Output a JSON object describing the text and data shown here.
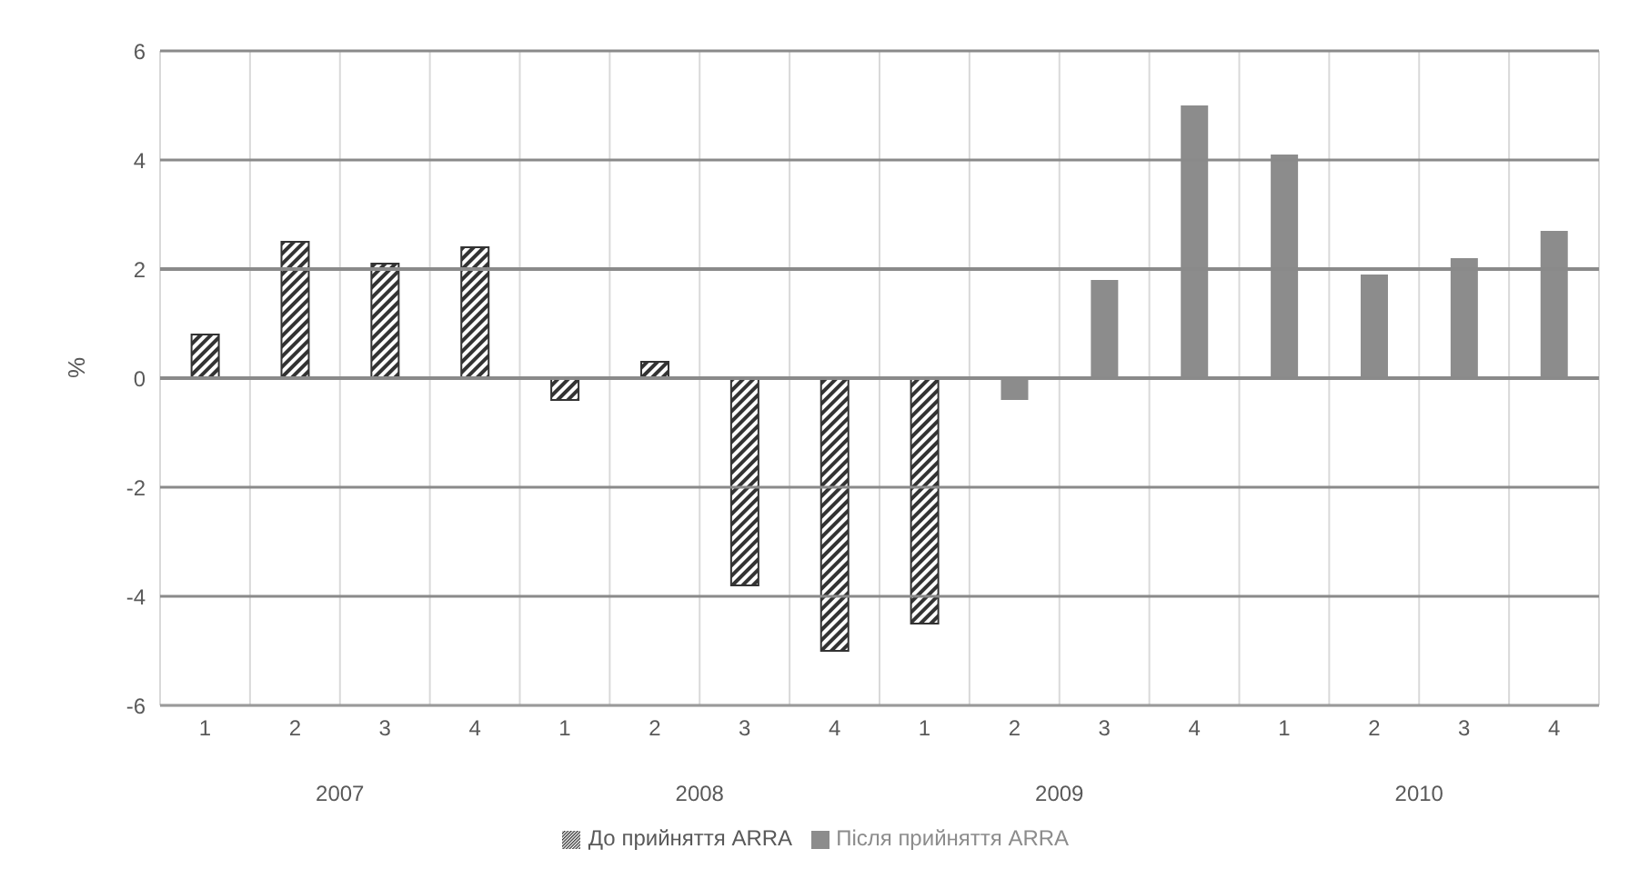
{
  "chart_data": {
    "type": "bar",
    "ylabel": "%",
    "categories": [
      "1",
      "2",
      "3",
      "4",
      "1",
      "2",
      "3",
      "4",
      "1",
      "2",
      "3",
      "4",
      "1",
      "2",
      "3",
      "4"
    ],
    "annotations": [
      "2007",
      "2008",
      "2009",
      "2010"
    ],
    "series": [
      {
        "name": "До прийняття ARRA",
        "color": "#333333",
        "values": [
          0.8,
          2.5,
          2.1,
          2.4,
          -0.4,
          0.3,
          -3.8,
          -5.0,
          -4.5,
          null,
          null,
          null,
          null,
          null,
          null,
          null
        ]
      },
      {
        "name": "Після прийняття ARRA",
        "color": "#8c8c8c",
        "values": [
          null,
          null,
          null,
          null,
          null,
          null,
          null,
          null,
          null,
          -0.4,
          1.8,
          5.0,
          4.1,
          1.9,
          2.2,
          2.7
        ]
      }
    ],
    "ylim": [
      -6,
      6
    ],
    "yticks": [
      -6,
      -4,
      -2,
      0,
      2,
      4,
      6
    ],
    "grid": true,
    "legend": "bottom"
  }
}
